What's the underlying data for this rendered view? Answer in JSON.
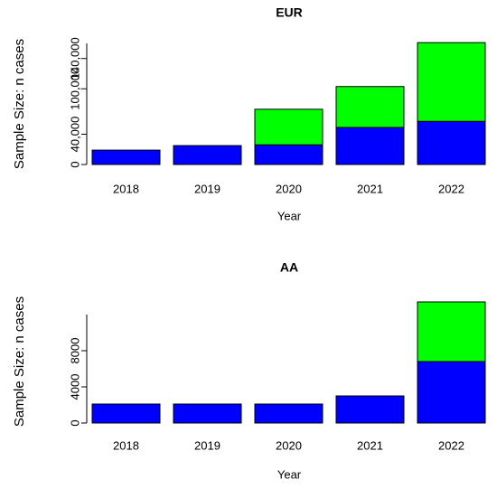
{
  "chart_data": [
    {
      "type": "bar",
      "stacked": true,
      "title": "EUR",
      "x_label": "Year",
      "y_label": "Sample Size: n cases",
      "categories": [
        "2018",
        "2019",
        "2020",
        "2021",
        "2022"
      ],
      "series": [
        {
          "color": "#0000ff",
          "values": [
            19000,
            25000,
            26000,
            49000,
            57000
          ]
        },
        {
          "color": "#00ff00",
          "values": [
            0,
            0,
            47000,
            54000,
            104000
          ]
        }
      ],
      "ylim": [
        0,
        160000
      ],
      "yticks": [
        0,
        {
          "value": 40000,
          "label": "40,000"
        },
        {
          "value": 100000,
          "label": "100,000"
        },
        {
          "value": 140000,
          "label": "140,000"
        }
      ]
    },
    {
      "type": "bar",
      "stacked": true,
      "title": "AA",
      "x_label": "Year",
      "y_label": "Sample Size: n cases",
      "categories": [
        "2018",
        "2019",
        "2020",
        "2021",
        "2022"
      ],
      "series": [
        {
          "color": "#0000ff",
          "values": [
            2100,
            2100,
            2100,
            3000,
            6800
          ]
        },
        {
          "color": "#00ff00",
          "values": [
            0,
            0,
            0,
            0,
            6600
          ]
        }
      ],
      "ylim": [
        0,
        12000
      ],
      "yticks": [
        0,
        4000,
        8000
      ]
    }
  ]
}
